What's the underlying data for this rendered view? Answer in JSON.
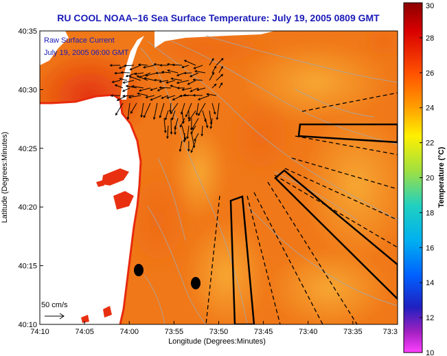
{
  "title": "RU COOL  NOAA–16  Sea Surface Temperature:  July 19, 2005 0809 GMT",
  "legend": {
    "line1": "Raw Surface Current",
    "line2": "July 19, 2005 06:00 GMT",
    "scale_label": "50 cm/s"
  },
  "chart_data": {
    "type": "heatmap",
    "title": "RU COOL  NOAA–16  Sea Surface Temperature:  July 19, 2005 0809 GMT",
    "xlabel": "Longitude (Degrees:Minutes)",
    "ylabel": "Latitude (Degrees:Minutes)",
    "x_ticks": [
      "74:10",
      "74:05",
      "74:00",
      "73:55",
      "73:50",
      "73:45",
      "73:40",
      "73:35",
      "73:3"
    ],
    "y_ticks": [
      "40:35",
      "40:30",
      "40:25",
      "40:20",
      "40:15",
      "40:10"
    ],
    "colorbar": {
      "label": "Temperature (°C)",
      "range": [
        10,
        30
      ],
      "ticks": [
        "30",
        "28",
        "26",
        "24",
        "22",
        "20",
        "18",
        "16",
        "14",
        "12",
        "10"
      ]
    },
    "sst_range_observed_c": [
      24,
      29
    ],
    "markers": [
      "station-dot",
      "station-dot"
    ],
    "colors": {
      "title": "#1a1ab8",
      "land": "#ffffff",
      "warm": "#f07818",
      "hot": "#e83010",
      "cool": "#f8a030"
    }
  }
}
